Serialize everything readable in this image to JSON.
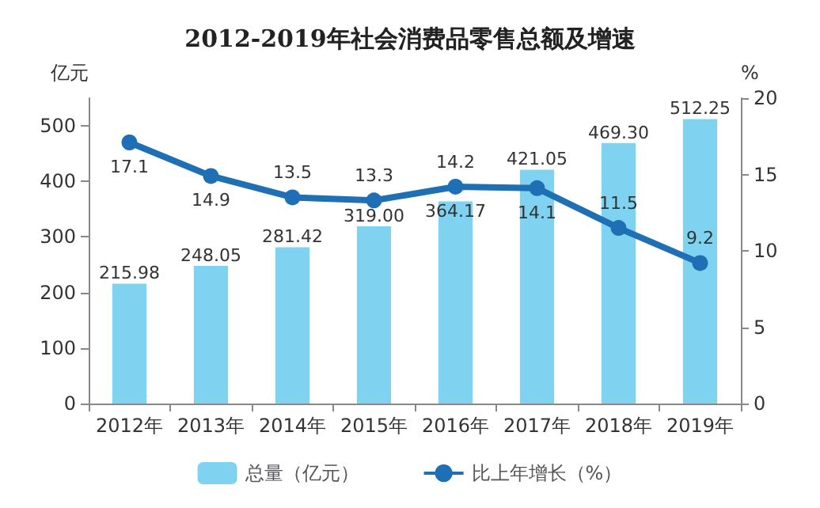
{
  "chart_data": {
    "type": "bar",
    "title": "2012-2019年社会消费品零售总额及增速",
    "ylabel": "亿元",
    "y2label": "%",
    "categories": [
      "2012年",
      "2013年",
      "2014年",
      "2015年",
      "2016年",
      "2017年",
      "2018年",
      "2019年"
    ],
    "series": [
      {
        "name": "总量（亿元）",
        "color": "#7fd3f0",
        "values": [
          215.98,
          248.05,
          281.42,
          319.0,
          364.17,
          421.05,
          469.3,
          512.25
        ],
        "value_labels": [
          "215.98",
          "248.05",
          "281.42",
          "319.00",
          "364.17",
          "421.05",
          "469.30",
          "512.25"
        ]
      },
      {
        "name": "比上年增长（%）",
        "type": "line",
        "axis": "y2",
        "color": "#1f6fb5",
        "values": [
          17.1,
          14.9,
          13.5,
          13.3,
          14.2,
          14.1,
          11.5,
          9.2
        ],
        "value_labels": [
          "17.1",
          "14.9",
          "13.5",
          "13.3",
          "14.2",
          "14.1",
          "11.5",
          "9.2"
        ]
      }
    ],
    "ylim": [
      0,
      550
    ],
    "yticks": [
      0,
      100,
      200,
      300,
      400,
      500
    ],
    "y2lim": [
      0,
      20
    ],
    "y2ticks": [
      0,
      5,
      10,
      15,
      20
    ],
    "legend": "bottom",
    "marker": "circle",
    "grid": false
  }
}
